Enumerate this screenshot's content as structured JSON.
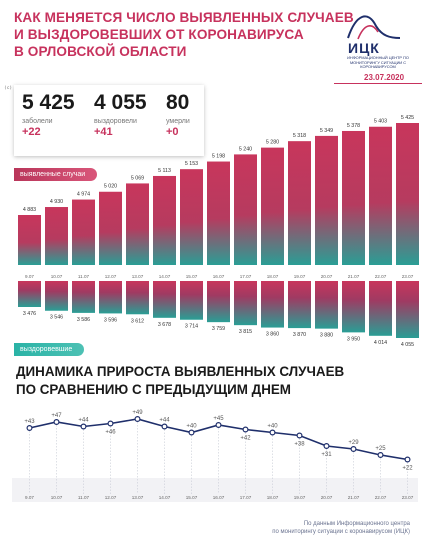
{
  "header": {
    "title_lines": [
      "КАК МЕНЯЕТСЯ ЧИСЛО ВЫЯВЛЕННЫХ СЛУЧАЕВ",
      "И ВЫЗДОРОВЕВШИХ ОТ КОРОНАВИРУСА",
      "В ОРЛОВСКОЙ ОБЛАСТИ"
    ],
    "copyright": "(c) infobrol.ru"
  },
  "logo": {
    "name": "ИЦК",
    "subtitle": "ИНФОРМАЦИОННЫЙ ЦЕНТР ПО МОНИТОРИНГУ СИТУАЦИИ С КОРОНАВИРУСОМ",
    "date": "23.07.2020"
  },
  "stats": [
    {
      "value": "5 425",
      "label": "заболели",
      "delta": "+22"
    },
    {
      "value": "4 055",
      "label": "выздоровели",
      "delta": "+41"
    },
    {
      "value": "80",
      "label": "умерли",
      "delta": "+0"
    }
  ],
  "labels": {
    "cases": "выявленные случаи",
    "recovered": "выздоровевшие"
  },
  "dynamics_title_lines": [
    "ДИНАМИКА ПРИРОСТА ВЫЯВЛЕННЫХ СЛУЧАЕВ",
    "ПО СРАВНЕНИЮ С ПРЕДЫДУЩИМ ДНЕМ"
  ],
  "source_lines": [
    "По данным Информационного центра",
    "по мониторингу ситуации с коронавирусом (ИЦК)"
  ],
  "colors": {
    "accent": "#c7325d",
    "teal": "#2ab3a6",
    "navy": "#1f2f6b"
  },
  "chart_data": [
    {
      "type": "bar",
      "categories": [
        "9.07",
        "10.07",
        "11.07",
        "12.07",
        "13.07",
        "14.07",
        "15.07",
        "16.07",
        "17.07",
        "18.07",
        "19.07",
        "20.07",
        "21.07",
        "22.07",
        "23.07"
      ],
      "series": [
        {
          "name": "выявленные случаи",
          "values": [
            4883,
            4930,
            4974,
            5020,
            5069,
            5113,
            5153,
            5198,
            5240,
            5280,
            5318,
            5349,
            5378,
            5403,
            5425
          ],
          "labels": [
            "4 883",
            "4 930",
            "4 974",
            "5 020",
            "5 069",
            "5 113",
            "5 153",
            "5 198",
            "5 240",
            "5 280",
            "5 318",
            "5 349",
            "5 378",
            "5 403",
            "5 425"
          ]
        },
        {
          "name": "выздоровевшие",
          "values": [
            3476,
            3546,
            3586,
            3596,
            3612,
            3678,
            3714,
            3759,
            3815,
            3860,
            3870,
            3880,
            3950,
            4014,
            4055
          ],
          "labels": [
            "3 476",
            "3 546",
            "3 586",
            "3 596",
            "3 612",
            "3 678",
            "3 714",
            "3 759",
            "3 815",
            "3 860",
            "3 870",
            "3 880",
            "3 950",
            "4 014",
            "4 055"
          ]
        }
      ]
    },
    {
      "type": "line",
      "categories": [
        "9.07",
        "10.07",
        "11.07",
        "12.07",
        "13.07",
        "14.07",
        "15.07",
        "16.07",
        "17.07",
        "18.07",
        "19.07",
        "20.07",
        "21.07",
        "22.07",
        "23.07"
      ],
      "values": [
        43,
        47,
        44,
        46,
        49,
        44,
        40,
        45,
        42,
        40,
        38,
        31,
        29,
        25,
        22
      ],
      "labels": [
        "+43",
        "+47",
        "+44",
        "+46",
        "+49",
        "+44",
        "+40",
        "+45",
        "+42",
        "+40",
        "+38",
        "+31",
        "+29",
        "+25",
        "+22"
      ],
      "label_position": [
        "above",
        "above",
        "above",
        "below",
        "above",
        "above",
        "above",
        "above",
        "below",
        "above",
        "below",
        "below",
        "above",
        "above",
        "below"
      ],
      "ylim": [
        15,
        55
      ]
    }
  ]
}
